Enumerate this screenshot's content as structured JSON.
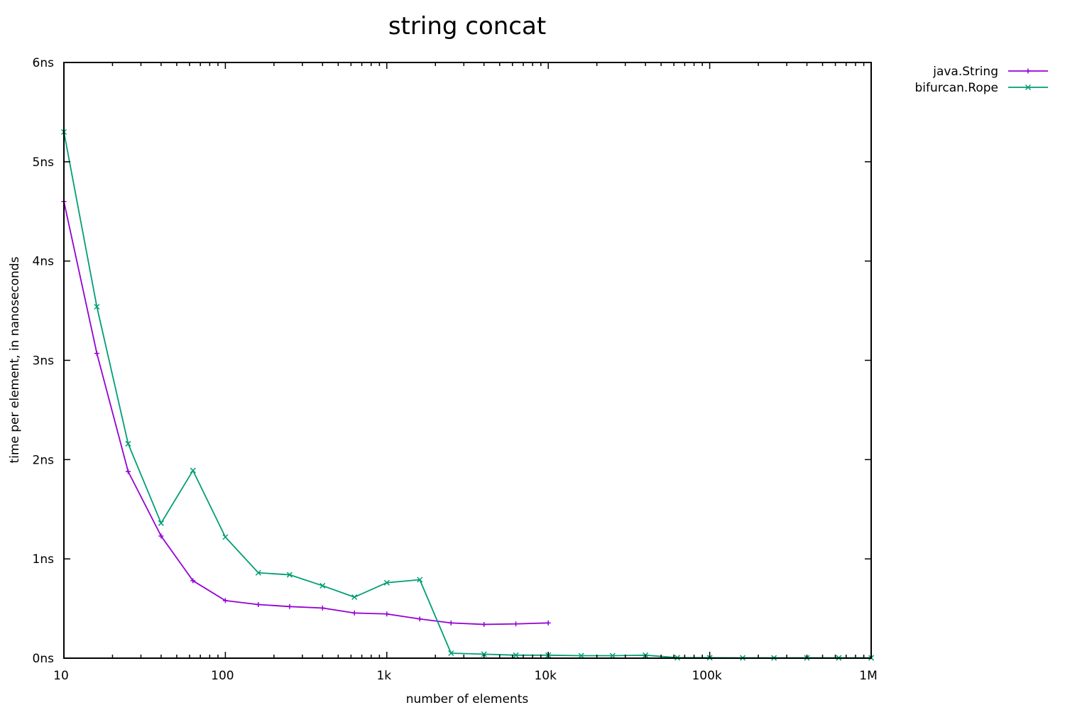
{
  "chart_data": {
    "type": "line",
    "title": "string concat",
    "xlabel": "number of elements",
    "ylabel": "time per element, in nanoseconds",
    "xscale": "log",
    "xlim": [
      10,
      1000000
    ],
    "ylim": [
      0,
      6
    ],
    "x_ticks": [
      {
        "value": 10,
        "label": "10"
      },
      {
        "value": 100,
        "label": "100"
      },
      {
        "value": 1000,
        "label": "1k"
      },
      {
        "value": 10000,
        "label": "10k"
      },
      {
        "value": 100000,
        "label": "100k"
      },
      {
        "value": 1000000,
        "label": "1M"
      }
    ],
    "y_ticks": [
      {
        "value": 0,
        "label": "0ns"
      },
      {
        "value": 1,
        "label": "1ns"
      },
      {
        "value": 2,
        "label": "2ns"
      },
      {
        "value": 3,
        "label": "3ns"
      },
      {
        "value": 4,
        "label": "4ns"
      },
      {
        "value": 5,
        "label": "5ns"
      },
      {
        "value": 6,
        "label": "6ns"
      }
    ],
    "legend_position": "top-right, outside plot",
    "grid": false,
    "series": [
      {
        "name": "java.String",
        "color": "#9400d3",
        "marker": "plus",
        "points": [
          [
            10,
            4.6
          ],
          [
            16,
            3.07
          ],
          [
            25,
            1.88
          ],
          [
            40,
            1.23
          ],
          [
            63,
            0.78
          ],
          [
            100,
            0.58
          ],
          [
            160,
            0.54
          ],
          [
            250,
            0.52
          ],
          [
            400,
            0.505
          ],
          [
            630,
            0.455
          ],
          [
            1000,
            0.445
          ],
          [
            1600,
            0.395
          ],
          [
            2500,
            0.355
          ],
          [
            4000,
            0.34
          ],
          [
            6300,
            0.345
          ],
          [
            10000,
            0.355
          ]
        ]
      },
      {
        "name": "bifurcan.Rope",
        "color": "#009e73",
        "marker": "x",
        "points": [
          [
            10,
            5.3
          ],
          [
            16,
            3.54
          ],
          [
            25,
            2.16
          ],
          [
            40,
            1.36
          ],
          [
            63,
            1.89
          ],
          [
            100,
            1.22
          ],
          [
            160,
            0.86
          ],
          [
            250,
            0.84
          ],
          [
            400,
            0.73
          ],
          [
            630,
            0.615
          ],
          [
            1000,
            0.76
          ],
          [
            1600,
            0.79
          ],
          [
            2500,
            0.05
          ],
          [
            4000,
            0.04
          ],
          [
            6300,
            0.03
          ],
          [
            10000,
            0.03
          ],
          [
            16000,
            0.025
          ],
          [
            25000,
            0.025
          ],
          [
            40000,
            0.03
          ],
          [
            63000,
            0.005
          ],
          [
            100000,
            0.005
          ],
          [
            160000,
            0.003
          ],
          [
            250000,
            0.003
          ],
          [
            400000,
            0.003
          ],
          [
            630000,
            0.003
          ],
          [
            1000000,
            0.003
          ]
        ]
      }
    ]
  }
}
